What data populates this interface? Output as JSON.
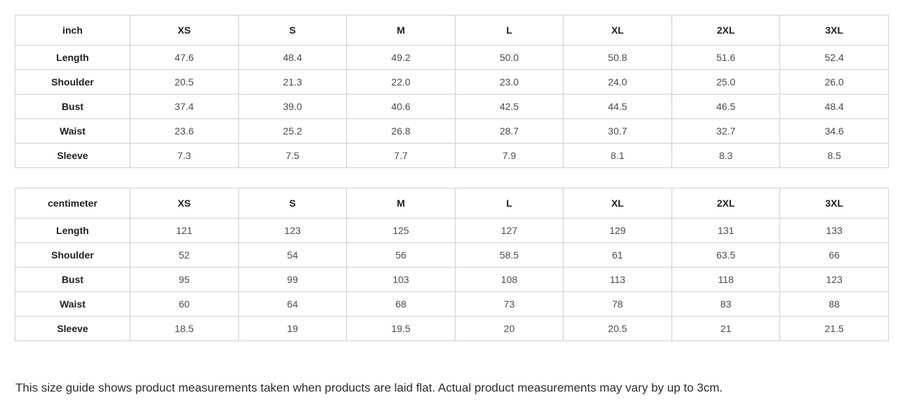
{
  "page": {
    "background": "#ffffff",
    "footer_note": "This size guide shows product measurements taken when products are laid flat. Actual product measurements may vary by up to 3cm."
  },
  "colors": {
    "border": "#cfcfcf",
    "label_text": "#1f1f1f",
    "value_text": "#4b4b4b",
    "note_text": "#2d2d2d"
  },
  "chart_data": [
    {
      "type": "table",
      "title": "inch",
      "columns": [
        "inch",
        "XS",
        "S",
        "M",
        "L",
        "XL",
        "2XL",
        "3XL"
      ],
      "rows": [
        {
          "label": "Length",
          "values": [
            "47.6",
            "48.4",
            "49.2",
            "50.0",
            "50.8",
            "51.6",
            "52.4"
          ]
        },
        {
          "label": "Shoulder",
          "values": [
            "20.5",
            "21.3",
            "22.0",
            "23.0",
            "24.0",
            "25.0",
            "26.0"
          ]
        },
        {
          "label": "Bust",
          "values": [
            "37.4",
            "39.0",
            "40.6",
            "42.5",
            "44.5",
            "46.5",
            "48.4"
          ]
        },
        {
          "label": "Waist",
          "values": [
            "23.6",
            "25.2",
            "26.8",
            "28.7",
            "30.7",
            "32.7",
            "34.6"
          ]
        },
        {
          "label": "Sleeve",
          "values": [
            "7.3",
            "7.5",
            "7.7",
            "7.9",
            "8.1",
            "8.3",
            "8.5"
          ]
        }
      ]
    },
    {
      "type": "table",
      "title": "centimeter",
      "columns": [
        "centimeter",
        "XS",
        "S",
        "M",
        "L",
        "XL",
        "2XL",
        "3XL"
      ],
      "rows": [
        {
          "label": "Length",
          "values": [
            "121",
            "123",
            "125",
            "127",
            "129",
            "131",
            "133"
          ]
        },
        {
          "label": "Shoulder",
          "values": [
            "52",
            "54",
            "56",
            "58.5",
            "61",
            "63.5",
            "66"
          ]
        },
        {
          "label": "Bust",
          "values": [
            "95",
            "99",
            "103",
            "108",
            "113",
            "118",
            "123"
          ]
        },
        {
          "label": "Waist",
          "values": [
            "60",
            "64",
            "68",
            "73",
            "78",
            "83",
            "88"
          ]
        },
        {
          "label": "Sleeve",
          "values": [
            "18.5",
            "19",
            "19.5",
            "20",
            "20.5",
            "21",
            "21.5"
          ]
        }
      ]
    }
  ]
}
